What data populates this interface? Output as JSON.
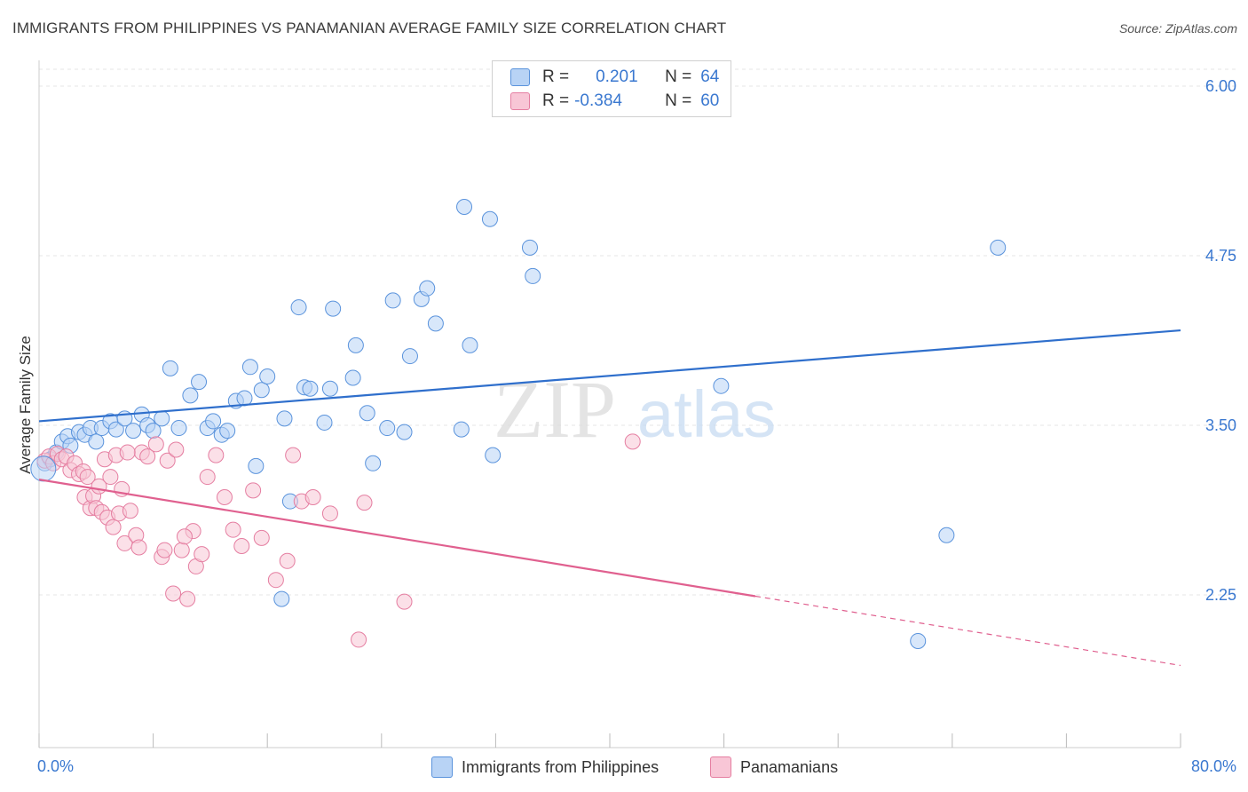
{
  "title": "IMMIGRANTS FROM PHILIPPINES VS PANAMANIAN AVERAGE FAMILY SIZE CORRELATION CHART",
  "source": "Source: ZipAtlas.com",
  "watermark": {
    "zip": "ZIP",
    "atlas": "atlas"
  },
  "legend": {
    "r_label": "R =",
    "n_label": "N =",
    "rows": [
      {
        "r": "0.201",
        "n": "64",
        "fill": "#b8d3f5",
        "stroke": "#5a93dc"
      },
      {
        "r": "-0.384",
        "n": "60",
        "fill": "#f8c6d6",
        "stroke": "#e57ea1"
      }
    ]
  },
  "bottom_legend": [
    "Immigrants from Philippines",
    "Panamanians"
  ],
  "chart_data": {
    "type": "scatter",
    "xlabel": "",
    "ylabel": "Average Family Size",
    "xlim": [
      0,
      80
    ],
    "ylim": [
      1.5,
      6.1
    ],
    "x_tick_labels": [
      "0.0%",
      "80.0%"
    ],
    "y_ticks": [
      2.25,
      3.5,
      4.75,
      6.0
    ],
    "y_tick_labels": [
      "2.25",
      "3.50",
      "4.75",
      "6.00"
    ],
    "grid": "horizontal dashed",
    "legend_position": "top-center",
    "series": [
      {
        "name": "Immigrants from Philippines",
        "color": "#5a93dc",
        "fill": "#b8d3f5",
        "trend": {
          "x": [
            0,
            80
          ],
          "y": [
            3.53,
            4.2
          ],
          "dashed_from": null
        },
        "points": [
          [
            0.4,
            3.22
          ],
          [
            0.8,
            3.25
          ],
          [
            1.2,
            3.3
          ],
          [
            1.6,
            3.38
          ],
          [
            2.0,
            3.42
          ],
          [
            2.2,
            3.35
          ],
          [
            2.8,
            3.45
          ],
          [
            3.2,
            3.43
          ],
          [
            3.6,
            3.48
          ],
          [
            4.0,
            3.38
          ],
          [
            4.4,
            3.48
          ],
          [
            5.0,
            3.53
          ],
          [
            5.4,
            3.47
          ],
          [
            6.0,
            3.55
          ],
          [
            6.6,
            3.46
          ],
          [
            7.2,
            3.58
          ],
          [
            7.6,
            3.5
          ],
          [
            8.0,
            3.46
          ],
          [
            8.6,
            3.55
          ],
          [
            9.2,
            3.92
          ],
          [
            9.8,
            3.48
          ],
          [
            10.6,
            3.72
          ],
          [
            11.2,
            3.82
          ],
          [
            11.8,
            3.48
          ],
          [
            12.2,
            3.53
          ],
          [
            12.8,
            3.43
          ],
          [
            13.2,
            3.46
          ],
          [
            13.8,
            3.68
          ],
          [
            14.4,
            3.7
          ],
          [
            14.8,
            3.93
          ],
          [
            15.2,
            3.2
          ],
          [
            15.6,
            3.76
          ],
          [
            16.0,
            3.86
          ],
          [
            17.2,
            3.55
          ],
          [
            17.6,
            2.94
          ],
          [
            18.2,
            4.37
          ],
          [
            18.6,
            3.78
          ],
          [
            19.0,
            3.77
          ],
          [
            20.0,
            3.52
          ],
          [
            20.4,
            3.77
          ],
          [
            20.6,
            4.36
          ],
          [
            22.0,
            3.85
          ],
          [
            22.2,
            4.09
          ],
          [
            23.0,
            3.59
          ],
          [
            23.4,
            3.22
          ],
          [
            24.4,
            3.48
          ],
          [
            24.8,
            4.42
          ],
          [
            25.6,
            3.45
          ],
          [
            26.0,
            4.01
          ],
          [
            26.8,
            4.43
          ],
          [
            27.2,
            4.51
          ],
          [
            27.8,
            4.25
          ],
          [
            29.6,
            3.47
          ],
          [
            30.2,
            4.09
          ],
          [
            29.8,
            5.11
          ],
          [
            31.6,
            5.02
          ],
          [
            31.8,
            3.28
          ],
          [
            34.4,
            4.81
          ],
          [
            34.6,
            4.6
          ],
          [
            47.8,
            3.79
          ],
          [
            63.6,
            2.69
          ],
          [
            67.2,
            4.81
          ],
          [
            61.6,
            1.91
          ],
          [
            17.0,
            2.22
          ]
        ]
      },
      {
        "name": "Panamanians",
        "color": "#e57ea1",
        "fill": "#f8c6d6",
        "trend": {
          "x": [
            0,
            80
          ],
          "y": [
            3.1,
            1.73
          ],
          "dashed_from": 50.2
        },
        "points": [
          [
            0.4,
            3.24
          ],
          [
            0.7,
            3.27
          ],
          [
            1.0,
            3.22
          ],
          [
            1.3,
            3.29
          ],
          [
            1.6,
            3.25
          ],
          [
            1.9,
            3.27
          ],
          [
            2.2,
            3.17
          ],
          [
            2.5,
            3.22
          ],
          [
            2.8,
            3.14
          ],
          [
            3.1,
            3.16
          ],
          [
            3.4,
            3.12
          ],
          [
            3.2,
            2.97
          ],
          [
            3.6,
            2.89
          ],
          [
            3.8,
            2.98
          ],
          [
            4.0,
            2.89
          ],
          [
            4.2,
            3.05
          ],
          [
            4.4,
            2.86
          ],
          [
            4.6,
            3.25
          ],
          [
            4.8,
            2.82
          ],
          [
            5.0,
            3.12
          ],
          [
            5.2,
            2.75
          ],
          [
            5.6,
            2.85
          ],
          [
            5.8,
            3.03
          ],
          [
            6.0,
            2.63
          ],
          [
            6.4,
            2.87
          ],
          [
            6.8,
            2.69
          ],
          [
            7.2,
            3.3
          ],
          [
            7.6,
            3.27
          ],
          [
            8.2,
            3.36
          ],
          [
            8.6,
            2.53
          ],
          [
            9.0,
            3.24
          ],
          [
            9.6,
            3.32
          ],
          [
            10.0,
            2.58
          ],
          [
            10.4,
            2.22
          ],
          [
            10.8,
            2.72
          ],
          [
            11.0,
            2.46
          ],
          [
            11.4,
            2.55
          ],
          [
            11.8,
            3.12
          ],
          [
            12.4,
            3.28
          ],
          [
            13.0,
            2.97
          ],
          [
            13.6,
            2.73
          ],
          [
            14.2,
            2.61
          ],
          [
            15.0,
            3.02
          ],
          [
            15.6,
            2.67
          ],
          [
            16.6,
            2.36
          ],
          [
            17.4,
            2.5
          ],
          [
            17.8,
            3.28
          ],
          [
            18.4,
            2.94
          ],
          [
            19.2,
            2.97
          ],
          [
            20.4,
            2.85
          ],
          [
            22.4,
            1.92
          ],
          [
            22.8,
            2.93
          ],
          [
            25.6,
            2.2
          ],
          [
            41.6,
            3.38
          ],
          [
            5.4,
            3.28
          ],
          [
            6.2,
            3.3
          ],
          [
            7.0,
            2.6
          ],
          [
            8.8,
            2.58
          ],
          [
            9.4,
            2.26
          ],
          [
            10.2,
            2.68
          ]
        ]
      }
    ]
  }
}
